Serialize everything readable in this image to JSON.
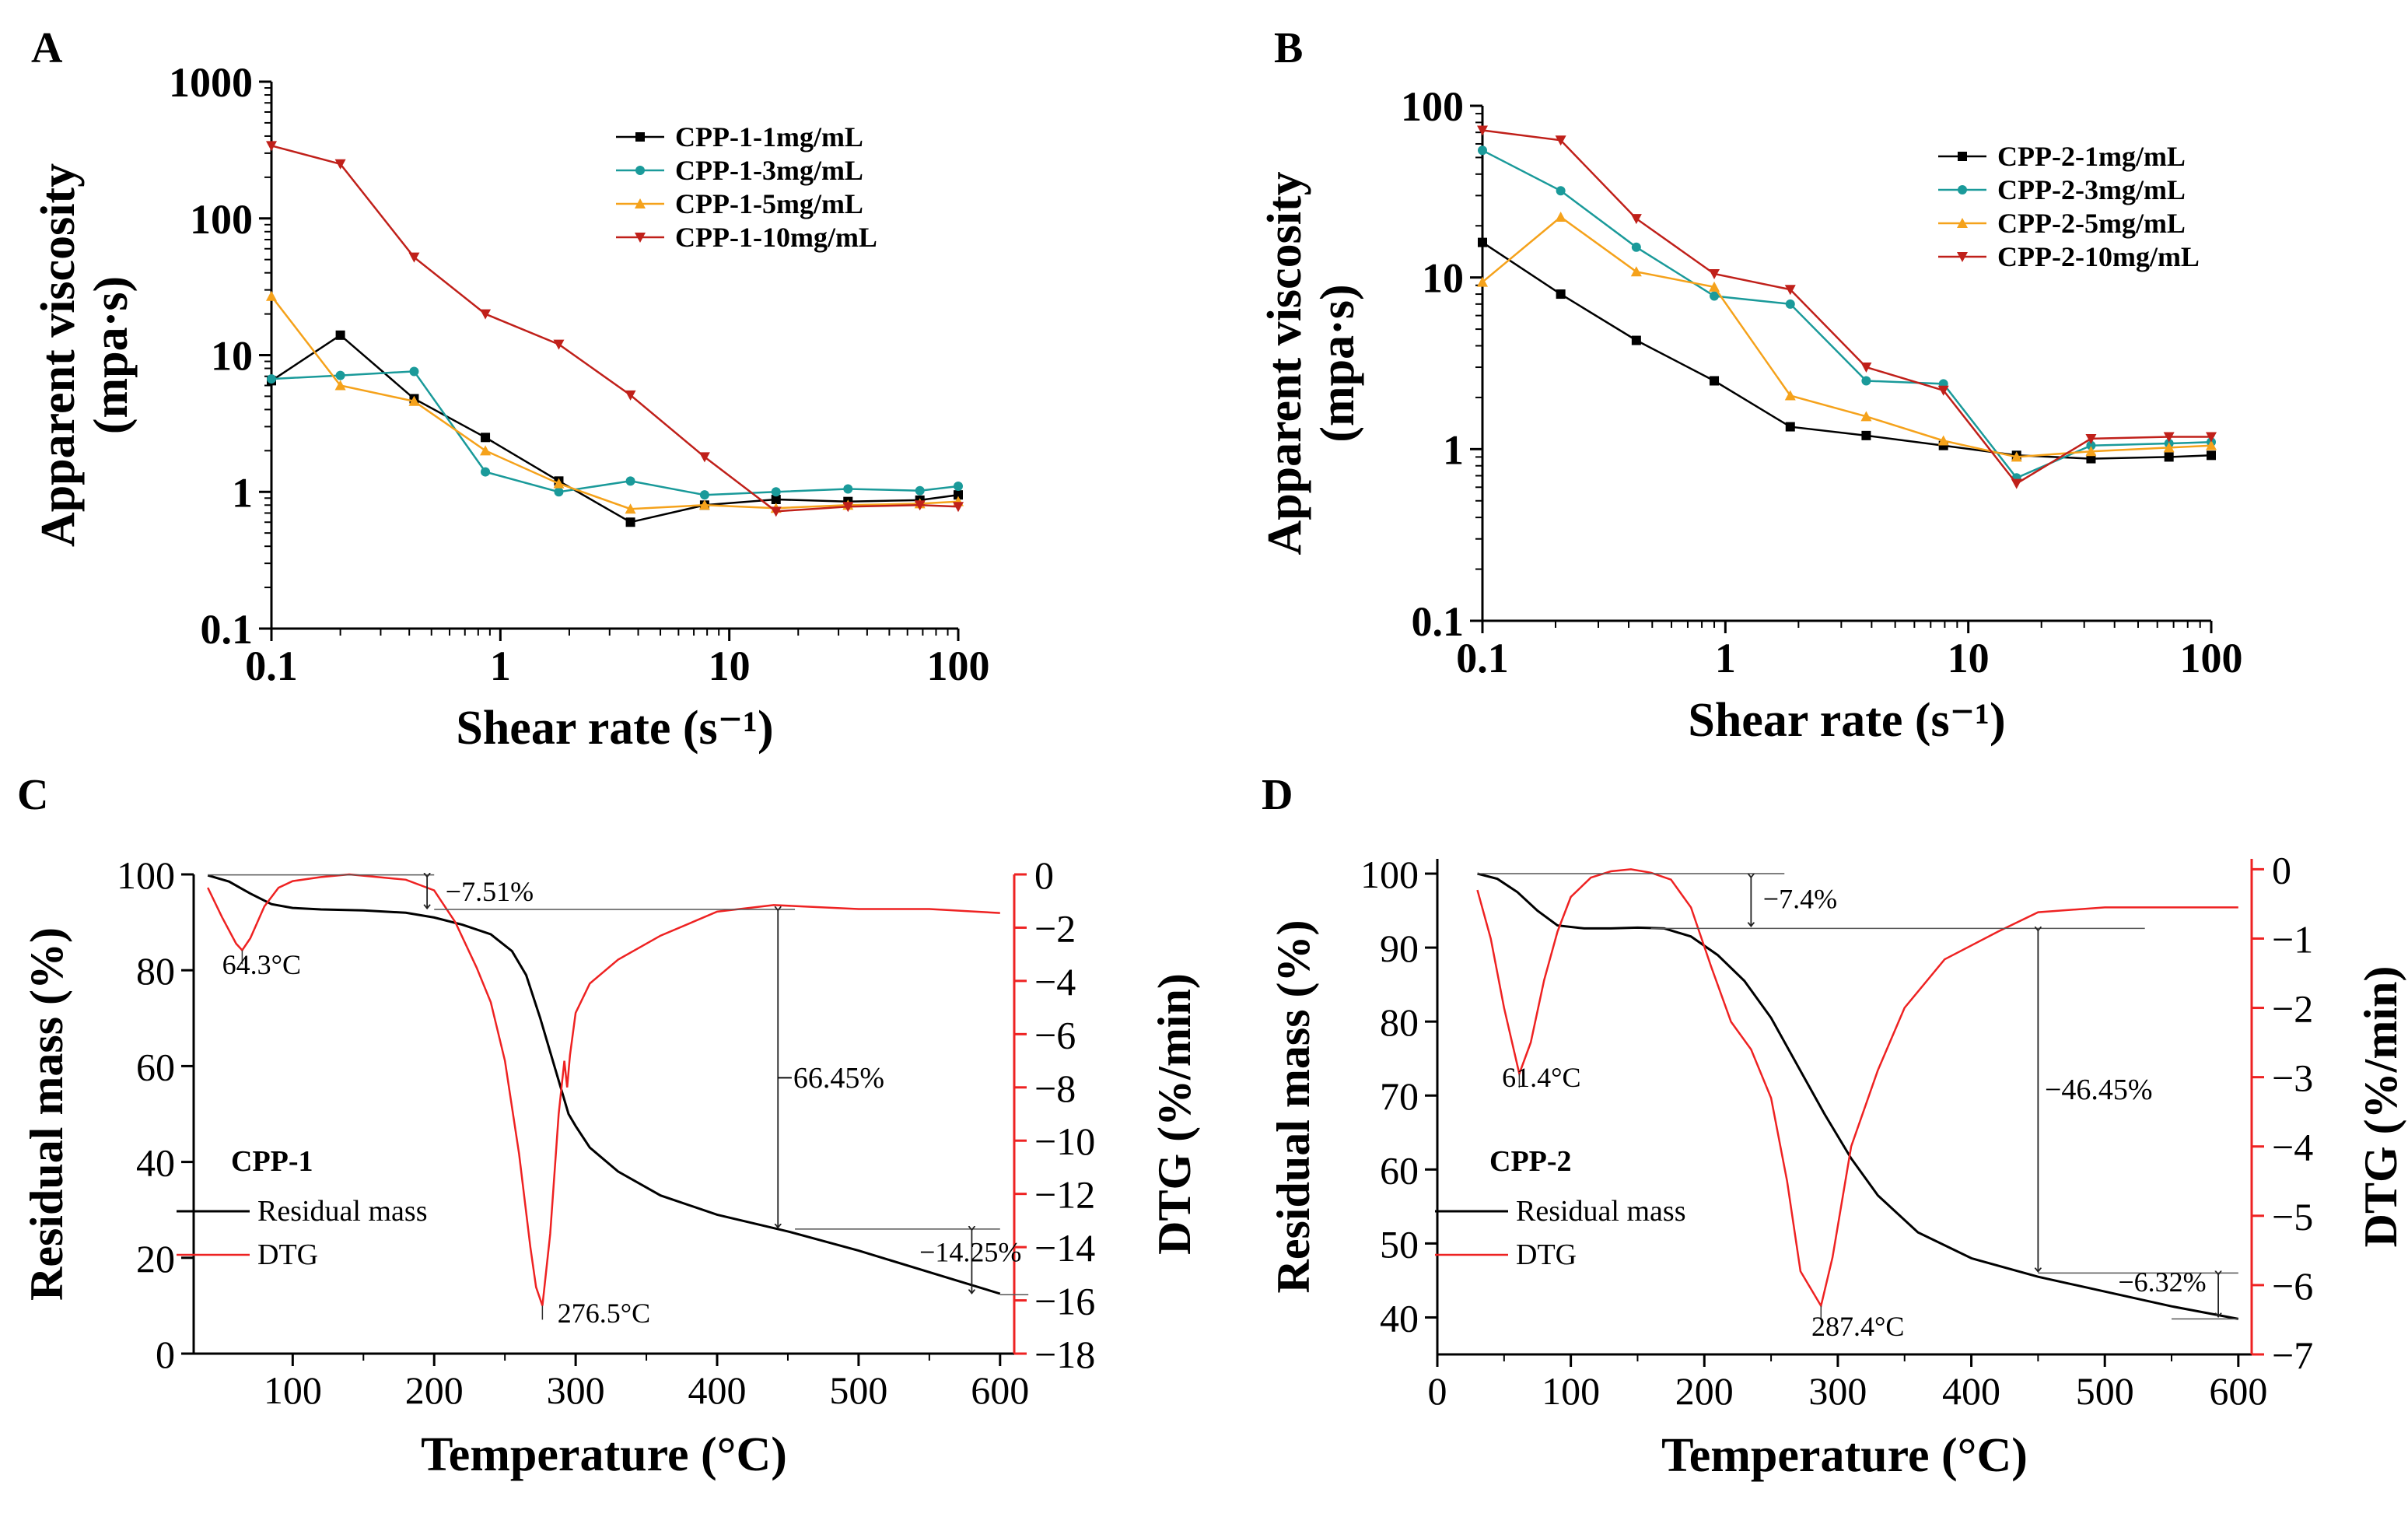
{
  "chart_data": [
    {
      "id": "A",
      "type": "line",
      "panel_label": "A",
      "xlabel": "Shear rate (s⁻¹)",
      "ylabel_line1": "Apparent viscosity",
      "ylabel_line2": "(mpa·s)",
      "xscale": "log",
      "yscale": "log",
      "xlim": [
        0.1,
        100
      ],
      "ylim": [
        0.1,
        1000
      ],
      "xticks": [
        0.1,
        1,
        10,
        100
      ],
      "xtick_labels": [
        "0.1",
        "1",
        "10",
        "100"
      ],
      "yticks": [
        0.1,
        1,
        10,
        100,
        1000
      ],
      "ytick_labels": [
        "0.1",
        "1",
        "10",
        "100",
        "1000"
      ],
      "legend_position": "top-right",
      "x": [
        0.1,
        0.2,
        0.42,
        0.86,
        1.8,
        3.7,
        7.8,
        16,
        33,
        68,
        100
      ],
      "series": [
        {
          "name": "CPP-1-1mg/mL",
          "color": "#000000",
          "marker": "square",
          "values": [
            6.5,
            14,
            4.8,
            2.5,
            1.2,
            0.6,
            0.8,
            0.88,
            0.85,
            0.87,
            0.95
          ]
        },
        {
          "name": "CPP-1-3mg/mL",
          "color": "#1a9a9a",
          "marker": "circle",
          "values": [
            6.7,
            7.1,
            7.6,
            1.4,
            1.0,
            1.2,
            0.95,
            1.0,
            1.05,
            1.02,
            1.1
          ]
        },
        {
          "name": "CPP-1-5mg/mL",
          "color": "#f5a21b",
          "marker": "triangle-up",
          "values": [
            27,
            6.0,
            4.6,
            2.0,
            1.15,
            0.75,
            0.8,
            0.76,
            0.8,
            0.82,
            0.85
          ]
        },
        {
          "name": "CPP-1-10mg/mL",
          "color": "#c0201a",
          "marker": "triangle-down",
          "values": [
            340,
            250,
            52,
            20,
            12,
            5.1,
            1.8,
            0.72,
            0.78,
            0.8,
            0.78
          ]
        }
      ]
    },
    {
      "id": "B",
      "type": "line",
      "panel_label": "B",
      "xlabel": "Shear rate (s⁻¹)",
      "ylabel_line1": "Apparent viscosity",
      "ylabel_line2": "(mpa·s)",
      "xscale": "log",
      "yscale": "log",
      "xlim": [
        0.1,
        100
      ],
      "ylim": [
        0.1,
        100
      ],
      "xticks": [
        0.1,
        1,
        10,
        100
      ],
      "xtick_labels": [
        "0.1",
        "1",
        "10",
        "100"
      ],
      "yticks": [
        0.1,
        1,
        10,
        100
      ],
      "ytick_labels": [
        "0.1",
        "1",
        "10",
        "100"
      ],
      "legend_position": "top-right",
      "x": [
        0.1,
        0.21,
        0.43,
        0.9,
        1.85,
        3.8,
        7.9,
        15.8,
        32,
        67,
        100
      ],
      "series": [
        {
          "name": "CPP-2-1mg/mL",
          "color": "#000000",
          "marker": "square",
          "values": [
            16,
            8.0,
            4.3,
            2.5,
            1.35,
            1.2,
            1.05,
            0.92,
            0.88,
            0.9,
            0.92
          ]
        },
        {
          "name": "CPP-2-3mg/mL",
          "color": "#1a9a9a",
          "marker": "circle",
          "values": [
            55,
            32,
            15,
            7.8,
            7.0,
            2.5,
            2.4,
            0.68,
            1.05,
            1.08,
            1.1
          ]
        },
        {
          "name": "CPP-2-5mg/mL",
          "color": "#f5a21b",
          "marker": "triangle-up",
          "values": [
            9.4,
            22.5,
            10.8,
            8.8,
            2.05,
            1.55,
            1.12,
            0.9,
            0.97,
            1.02,
            1.05
          ]
        },
        {
          "name": "CPP-2-10mg/mL",
          "color": "#c0201a",
          "marker": "triangle-down",
          "values": [
            72,
            63,
            22,
            10.5,
            8.5,
            3.0,
            2.2,
            0.63,
            1.15,
            1.18,
            1.18
          ]
        }
      ]
    },
    {
      "id": "C",
      "type": "line",
      "panel_label": "C",
      "xlabel": "Temperature (°C)",
      "ylabel_left": "Residual mass (%)",
      "ylabel_right": "DTG (%/min)",
      "xlim": [
        30,
        610
      ],
      "ylim_left": [
        0,
        100
      ],
      "ylim_right": [
        -18,
        0
      ],
      "xticks": [
        100,
        200,
        300,
        400,
        500,
        600
      ],
      "xtick_labels": [
        "100",
        "200",
        "300",
        "400",
        "500",
        "600"
      ],
      "yticks_left": [
        0,
        20,
        40,
        60,
        80,
        100
      ],
      "ytick_labels_left": [
        "0",
        "20",
        "40",
        "60",
        "80",
        "100"
      ],
      "yticks_right": [
        0,
        -2,
        -4,
        -6,
        -8,
        -10,
        -12,
        -14,
        -16,
        -18
      ],
      "ytick_labels_right": [
        "0",
        "−2",
        "−4",
        "−6",
        "−8",
        "−10",
        "−12",
        "−14",
        "−16",
        "−18"
      ],
      "legend_title": "CPP-1",
      "series": [
        {
          "name": "Residual mass",
          "axis": "left",
          "color": "#000000",
          "x": [
            40,
            55,
            70,
            85,
            100,
            120,
            150,
            180,
            200,
            220,
            240,
            255,
            265,
            275,
            285,
            295,
            300,
            310,
            330,
            360,
            400,
            450,
            500,
            550,
            600
          ],
          "values": [
            99.8,
            98.5,
            96,
            93.8,
            93,
            92.7,
            92.5,
            92,
            91,
            89.5,
            87.5,
            84,
            79,
            70,
            60,
            50,
            47.5,
            43,
            38,
            33,
            29,
            25.5,
            21.5,
            17,
            12.5
          ]
        },
        {
          "name": "DTG",
          "axis": "right",
          "color": "#ee2222",
          "x": [
            40,
            50,
            60,
            64.3,
            70,
            80,
            90,
            100,
            120,
            140,
            160,
            180,
            200,
            215,
            230,
            240,
            250,
            260,
            268,
            272,
            276.5,
            282,
            288,
            292,
            294,
            296,
            300,
            310,
            330,
            360,
            400,
            440,
            460,
            500,
            550,
            600
          ],
          "values": [
            -0.5,
            -1.6,
            -2.6,
            -2.85,
            -2.4,
            -1.2,
            -0.5,
            -0.25,
            -0.1,
            0,
            -0.1,
            -0.2,
            -0.6,
            -1.8,
            -3.5,
            -4.8,
            -7.0,
            -10.5,
            -14.0,
            -15.5,
            -16.2,
            -13.5,
            -9.0,
            -7.0,
            -8.0,
            -6.8,
            -5.2,
            -4.1,
            -3.2,
            -2.3,
            -1.4,
            -1.15,
            -1.2,
            -1.3,
            -1.3,
            -1.45
          ]
        }
      ],
      "annotations": [
        {
          "text": "64.3°C"
        },
        {
          "text": "276.5°C"
        },
        {
          "text": "−7.51%"
        },
        {
          "text": "−66.45%"
        },
        {
          "text": "−14.25%"
        }
      ]
    },
    {
      "id": "D",
      "type": "line",
      "panel_label": "D",
      "xlabel": "Temperature (°C)",
      "ylabel_left": "Residual mass (%)",
      "ylabel_right": "DTG (%/min)",
      "xlim": [
        0,
        610
      ],
      "ylim_left": [
        35,
        102
      ],
      "ylim_right": [
        -7,
        0.15
      ],
      "xticks": [
        0,
        100,
        200,
        300,
        400,
        500,
        600
      ],
      "xtick_labels": [
        "0",
        "100",
        "200",
        "300",
        "400",
        "500",
        "600"
      ],
      "yticks_left": [
        40,
        50,
        60,
        70,
        80,
        90,
        100
      ],
      "ytick_labels_left": [
        "40",
        "50",
        "60",
        "70",
        "80",
        "90",
        "100"
      ],
      "yticks_right": [
        0,
        -1,
        -2,
        -3,
        -4,
        -5,
        -6,
        -7
      ],
      "ytick_labels_right": [
        "0",
        "−1",
        "−2",
        "−3",
        "−4",
        "−5",
        "−6",
        "−7"
      ],
      "legend_title": "CPP-2",
      "series": [
        {
          "name": "Residual mass",
          "axis": "left",
          "color": "#000000",
          "x": [
            30,
            45,
            60,
            75,
            90,
            110,
            130,
            150,
            170,
            190,
            210,
            230,
            250,
            270,
            290,
            310,
            330,
            360,
            400,
            450,
            500,
            550,
            600
          ],
          "values": [
            100,
            99.3,
            97.5,
            95,
            93,
            92.6,
            92.6,
            92.7,
            92.6,
            91.5,
            89,
            85.5,
            80.5,
            74,
            67.5,
            61.5,
            56.5,
            51.5,
            48,
            45.5,
            43.5,
            41.5,
            39.8
          ]
        },
        {
          "name": "DTG",
          "axis": "right",
          "color": "#ee2222",
          "x": [
            30,
            40,
            50,
            61.4,
            70,
            80,
            90,
            100,
            115,
            130,
            145,
            160,
            175,
            190,
            205,
            220,
            235,
            250,
            262,
            272,
            287.4,
            296,
            310,
            330,
            350,
            380,
            420,
            450,
            500,
            550,
            600
          ],
          "values": [
            -0.3,
            -1.0,
            -2.0,
            -2.95,
            -2.5,
            -1.6,
            -0.9,
            -0.4,
            -0.12,
            -0.03,
            0,
            -0.05,
            -0.15,
            -0.55,
            -1.4,
            -2.2,
            -2.6,
            -3.3,
            -4.5,
            -5.8,
            -6.3,
            -5.6,
            -4.0,
            -2.9,
            -2.0,
            -1.3,
            -0.9,
            -0.62,
            -0.55,
            -0.55,
            -0.55
          ]
        }
      ],
      "annotations": [
        {
          "text": "61.4°C"
        },
        {
          "text": "287.4°C"
        },
        {
          "text": "−7.4%"
        },
        {
          "text": "−46.45%"
        },
        {
          "text": "−6.32%"
        }
      ]
    }
  ]
}
